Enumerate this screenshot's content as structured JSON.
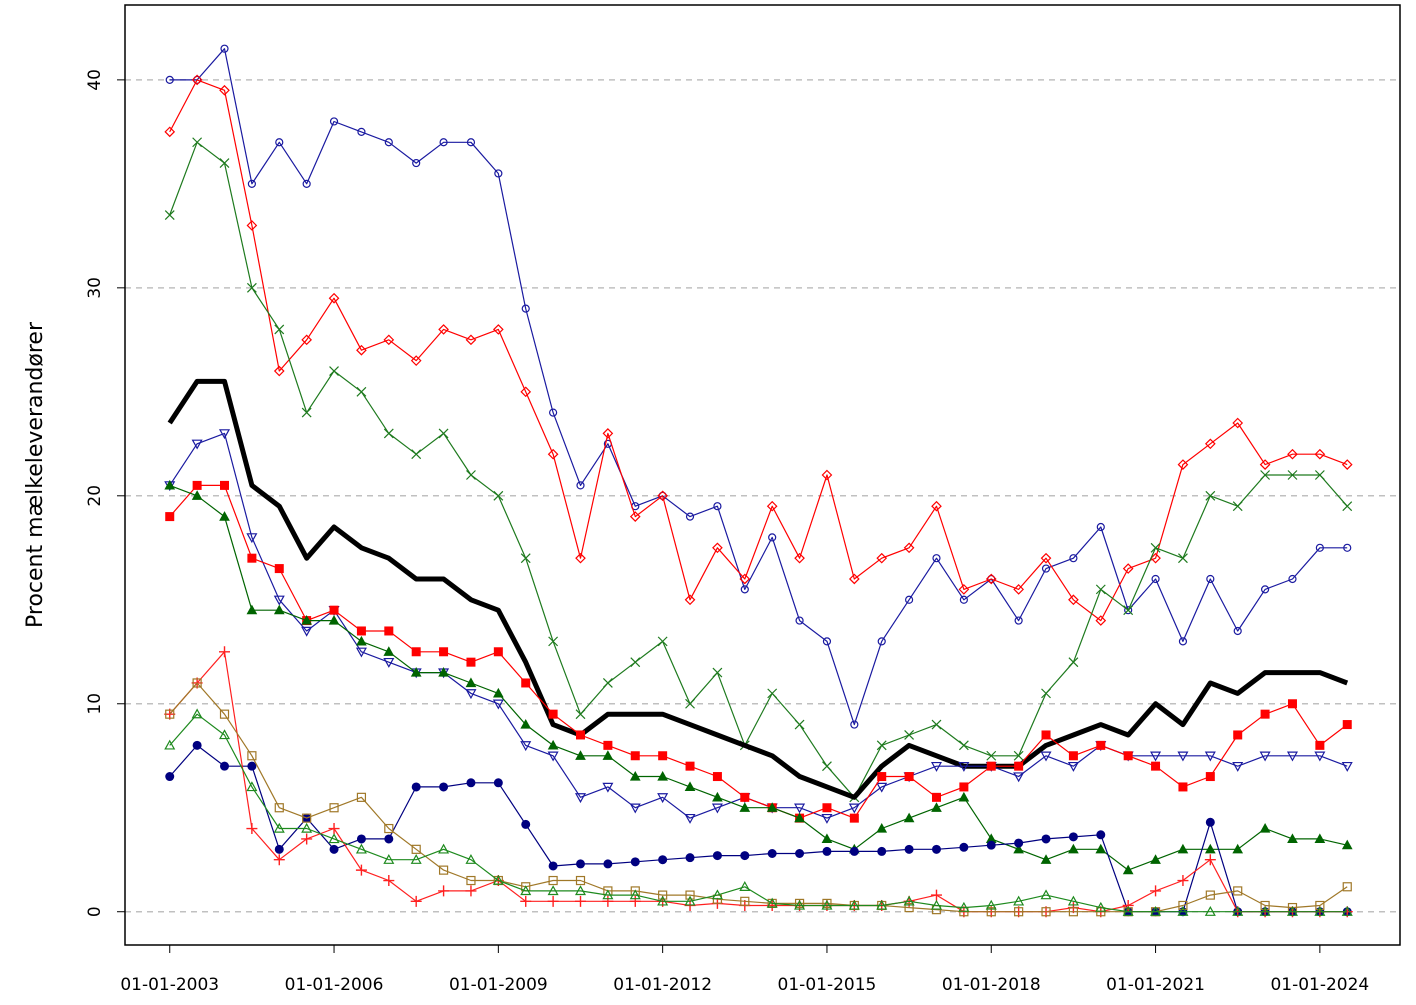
{
  "chart_data": {
    "type": "line",
    "y_label": "Procent mælkeleverandører",
    "x": [
      "01-01-2003",
      "01-07-2003",
      "01-01-2004",
      "01-07-2004",
      "01-01-2005",
      "01-07-2005",
      "01-01-2006",
      "01-07-2006",
      "01-01-2007",
      "01-07-2007",
      "01-01-2008",
      "01-07-2008",
      "01-01-2009",
      "01-07-2009",
      "01-01-2010",
      "01-07-2010",
      "01-01-2011",
      "01-07-2011",
      "01-01-2012",
      "01-07-2012",
      "01-01-2013",
      "01-07-2013",
      "01-01-2014",
      "01-07-2014",
      "01-01-2015",
      "01-07-2015",
      "01-01-2016",
      "01-07-2016",
      "01-01-2017",
      "01-07-2017",
      "01-01-2018",
      "01-07-2018",
      "01-01-2019",
      "01-07-2019",
      "01-01-2020",
      "01-07-2020",
      "01-01-2021",
      "01-07-2021",
      "01-01-2022",
      "01-07-2022",
      "01-01-2023",
      "01-07-2023",
      "01-01-2024",
      "01-07-2024"
    ],
    "xlim": [
      "07-03-2002",
      "18-06-2025"
    ],
    "xticks": [
      "01-01-2003",
      "01-01-2006",
      "01-01-2009",
      "01-01-2012",
      "01-01-2015",
      "01-01-2018",
      "01-01-2021",
      "01-01-2024"
    ],
    "ylim": [
      -1.6,
      43.6
    ],
    "yticks": [
      0,
      10,
      20,
      30,
      40
    ],
    "grid": true,
    "series": [
      {
        "color": "#1a1aa0",
        "marker": "circle-open",
        "values": [
          40,
          40,
          41.5,
          35,
          37,
          35,
          38,
          37.5,
          37,
          36,
          37,
          37,
          35.5,
          29,
          24,
          20.5,
          22.5,
          19.5,
          20,
          19,
          19.5,
          15.5,
          18,
          14,
          13,
          9,
          13,
          15,
          17,
          15,
          16,
          14,
          16.5,
          17,
          18.5,
          14.5,
          16,
          13,
          16,
          13.5,
          15.5,
          16,
          17.5,
          17.5
        ]
      },
      {
        "color": "#ff0000",
        "marker": "diamond-open",
        "values": [
          37.5,
          40,
          39.5,
          33,
          26,
          27.5,
          29.5,
          27,
          27.5,
          26.5,
          28,
          27.5,
          28,
          25,
          22,
          17,
          23,
          19,
          20,
          15,
          17.5,
          16,
          19.5,
          17,
          21,
          16,
          17,
          17.5,
          19.5,
          15.5,
          16,
          15.5,
          17,
          15,
          14,
          16.5,
          17,
          21.5,
          22.5,
          23.5,
          21.5,
          22,
          22,
          21.5
        ]
      },
      {
        "color": "#1e7a1e",
        "marker": "x",
        "values": [
          33.5,
          37,
          36,
          30,
          28,
          24,
          26,
          25,
          23,
          22,
          23,
          21,
          20,
          17,
          13,
          9.5,
          11,
          12,
          13,
          10,
          11.5,
          8,
          10.5,
          9,
          7,
          5.5,
          8,
          8.5,
          9,
          8,
          7.5,
          7.5,
          10.5,
          12,
          15.5,
          14.5,
          17.5,
          17,
          20,
          19.5,
          21,
          21,
          21,
          19.5
        ]
      },
      {
        "color": "#000000",
        "marker": "none",
        "values": [
          23.5,
          25.5,
          25.5,
          20.5,
          19.5,
          17,
          18.5,
          17.5,
          17,
          16,
          16,
          15,
          14.5,
          12,
          9,
          8.5,
          9.5,
          9.5,
          9.5,
          9,
          8.5,
          8,
          7.5,
          6.5,
          6,
          5.5,
          7,
          8,
          7.5,
          7,
          7,
          7,
          8,
          8.5,
          9,
          8.5,
          10,
          9,
          11,
          10.5,
          11.5,
          11.5,
          11.5,
          11
        ]
      },
      {
        "color": "#1a1aa0",
        "marker": "triangle-down-open",
        "values": [
          20.5,
          22.5,
          23,
          18,
          15,
          13.5,
          14.5,
          12.5,
          12,
          11.5,
          11.5,
          10.5,
          10,
          8,
          7.5,
          5.5,
          6,
          5,
          5.5,
          4.5,
          5,
          5.5,
          5,
          5,
          4.5,
          5,
          6,
          6.5,
          7,
          7,
          7,
          6.5,
          7.5,
          7,
          8,
          7.5,
          7.5,
          7.5,
          7.5,
          7,
          7.5,
          7.5,
          7.5,
          7
        ]
      },
      {
        "color": "#ff0000",
        "marker": "square",
        "values": [
          19,
          20.5,
          20.5,
          17,
          16.5,
          14,
          14.5,
          13.5,
          13.5,
          12.5,
          12.5,
          12,
          12.5,
          11,
          9.5,
          8.5,
          8,
          7.5,
          7.5,
          7,
          6.5,
          5.5,
          5,
          4.5,
          5,
          4.5,
          6.5,
          6.5,
          5.5,
          6,
          7,
          7,
          8.5,
          7.5,
          8,
          7.5,
          7,
          6,
          6.5,
          8.5,
          9.5,
          10,
          8,
          9
        ]
      },
      {
        "color": "#006400",
        "marker": "triangle",
        "values": [
          20.5,
          20,
          19,
          14.5,
          14.5,
          14,
          14,
          13,
          12.5,
          11.5,
          11.5,
          11,
          10.5,
          9,
          8,
          7.5,
          7.5,
          6.5,
          6.5,
          6,
          5.5,
          5,
          5,
          4.5,
          3.5,
          3,
          4,
          4.5,
          5,
          5.5,
          3.5,
          3,
          2.5,
          3,
          3,
          2,
          2.5,
          3,
          3,
          3,
          4,
          3.5,
          3.5,
          3.2
        ]
      },
      {
        "color": "#000080",
        "marker": "circle",
        "values": [
          6.5,
          8,
          7,
          7,
          3,
          4.5,
          3,
          3.5,
          3.5,
          6,
          6,
          6.2,
          6.2,
          4.2,
          2.2,
          2.3,
          2.3,
          2.4,
          2.5,
          2.6,
          2.7,
          2.7,
          2.8,
          2.8,
          2.9,
          2.9,
          2.9,
          3,
          3,
          3.1,
          3.2,
          3.3,
          3.5,
          3.6,
          3.7,
          0,
          0,
          0,
          4.3,
          0,
          0,
          0,
          0,
          0
        ]
      },
      {
        "color": "#ff2020",
        "marker": "plus",
        "values": [
          9.5,
          11,
          12.5,
          4,
          2.5,
          3.5,
          4,
          2,
          1.5,
          0.5,
          1,
          1,
          1.5,
          0.5,
          0.5,
          0.5,
          0.5,
          0.5,
          0.5,
          0.3,
          0.4,
          0.3,
          0.3,
          0.3,
          0.3,
          0.3,
          0.3,
          0.5,
          0.8,
          0,
          0,
          0,
          0,
          0.2,
          0,
          0.3,
          1,
          1.5,
          2.5,
          0,
          0,
          0,
          0,
          0
        ]
      },
      {
        "color": "#a07828",
        "marker": "square-open",
        "values": [
          9.5,
          11,
          9.5,
          7.5,
          5,
          4.5,
          5,
          5.5,
          4,
          3,
          2,
          1.5,
          1.5,
          1.2,
          1.5,
          1.5,
          1,
          1,
          0.8,
          0.8,
          0.6,
          0.5,
          0.4,
          0.4,
          0.4,
          0.3,
          0.3,
          0.2,
          0.1,
          0,
          0,
          0,
          0,
          0,
          0,
          0,
          0,
          0.3,
          0.8,
          1,
          0.3,
          0.2,
          0.3,
          1.2
        ]
      },
      {
        "color": "#1e8a1e",
        "marker": "triangle-open",
        "values": [
          8,
          9.5,
          8.5,
          6,
          4,
          4,
          3.5,
          3,
          2.5,
          2.5,
          3,
          2.5,
          1.5,
          1,
          1,
          1,
          0.8,
          0.8,
          0.5,
          0.5,
          0.8,
          1.2,
          0.4,
          0.3,
          0.3,
          0.3,
          0.3,
          0.5,
          0.3,
          0.2,
          0.3,
          0.5,
          0.8,
          0.5,
          0.2,
          0,
          0,
          0,
          0,
          0,
          0,
          0,
          0,
          0
        ]
      }
    ]
  }
}
